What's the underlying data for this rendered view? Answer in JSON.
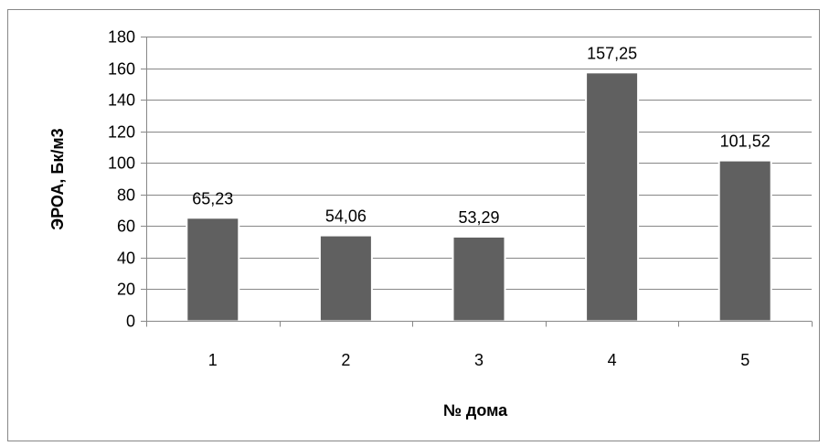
{
  "chart_data": {
    "type": "bar",
    "categories": [
      "1",
      "2",
      "3",
      "4",
      "5"
    ],
    "values": [
      65.23,
      54.06,
      53.29,
      157.25,
      101.52
    ],
    "data_labels": [
      "65,23",
      "54,06",
      "53,29",
      "157,25",
      "101,52"
    ],
    "xlabel": "№ дома",
    "ylabel": "ЭРОА, Бк/м3",
    "ylim": [
      0,
      180
    ],
    "yticks": [
      "0",
      "20",
      "40",
      "60",
      "80",
      "100",
      "120",
      "140",
      "160",
      "180"
    ],
    "grid": true,
    "legend": "none",
    "colors": {
      "bar": "#606060",
      "bar_edge": "#ffffff",
      "grid": "#878787",
      "axis": "#878787",
      "frame": "#878787"
    }
  }
}
